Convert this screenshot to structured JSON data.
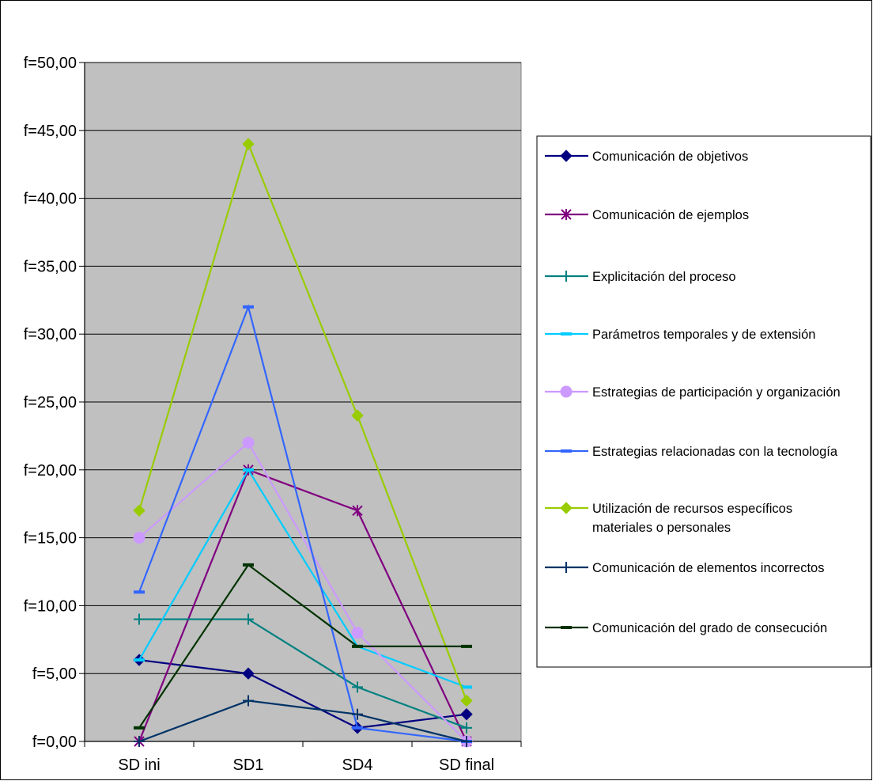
{
  "chart_data": {
    "type": "line",
    "categories": [
      "SD ini",
      "SD1",
      "SD4",
      "SD final"
    ],
    "y_tick_labels": [
      "f=0,00",
      "f=5,00",
      "f=10,00",
      "f=15,00",
      "f=20,00",
      "f=25,00",
      "f=30,00",
      "f=35,00",
      "f=40,00",
      "f=45,00",
      "f=50,00"
    ],
    "ylim": [
      0,
      50
    ],
    "grid": true,
    "plot_background": "#c0c0c0",
    "legend_position": "right",
    "series": [
      {
        "name": "Comunicación de objetivos",
        "values": [
          6,
          5,
          1,
          2
        ],
        "color": "#000080",
        "marker": "diamond"
      },
      {
        "name": "Comunicación de ejemplos",
        "values": [
          0,
          20,
          17,
          0
        ],
        "color": "#800080",
        "marker": "asterisk"
      },
      {
        "name": "Explicitación del proceso",
        "values": [
          9,
          9,
          4,
          1
        ],
        "color": "#008080",
        "marker": "plus"
      },
      {
        "name": "Parámetros temporales y de extensión",
        "values": [
          6,
          20,
          7,
          4
        ],
        "color": "#00ccff",
        "marker": "dash"
      },
      {
        "name": "Estrategias de participación y organización",
        "values": [
          15,
          22,
          8,
          0
        ],
        "color": "#cc99ff",
        "marker": "circle"
      },
      {
        "name": "Estrategias relacionadas con la tecnología",
        "values": [
          11,
          32,
          1,
          0
        ],
        "color": "#3366ff",
        "marker": "dash"
      },
      {
        "name": [
          "Utilización de recursos específicos",
          "materiales o personales"
        ],
        "values": [
          17,
          44,
          24,
          3
        ],
        "color": "#99cc00",
        "marker": "diamond"
      },
      {
        "name": "Comunicación de elementos incorrectos",
        "values": [
          0,
          3,
          2,
          0
        ],
        "color": "#003366",
        "marker": "plus"
      },
      {
        "name": "Comunicación del grado de consecución",
        "values": [
          1,
          13,
          7,
          7
        ],
        "color": "#003300",
        "marker": "dash"
      }
    ]
  }
}
